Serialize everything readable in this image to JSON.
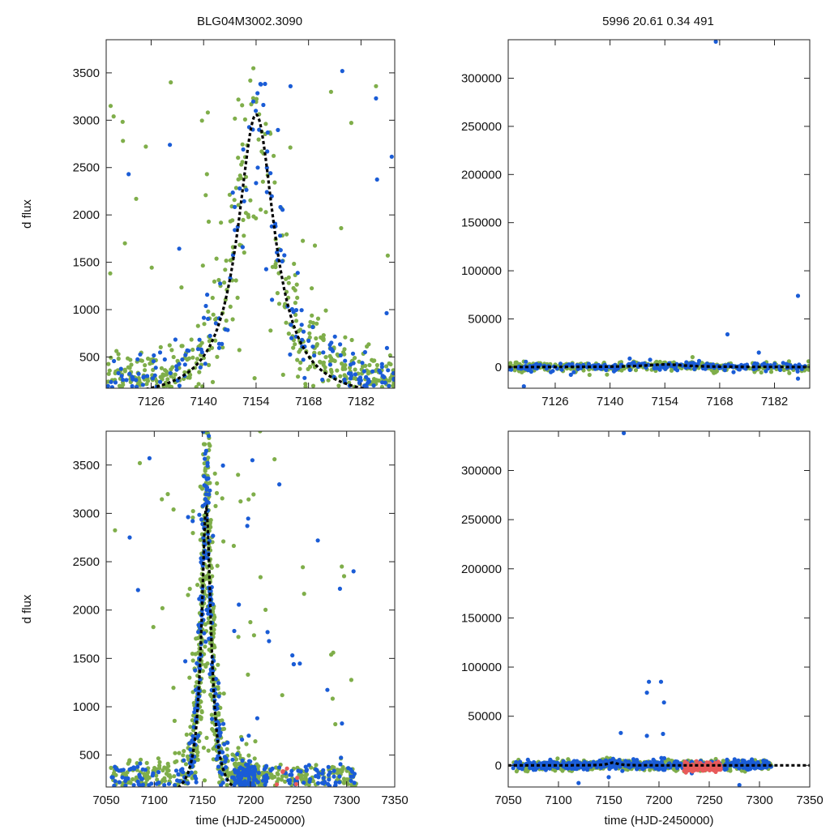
{
  "header": {
    "left_title": "BLG04M3002.3090",
    "right_title": "5996  20.61  0.34  491"
  },
  "colors": {
    "survey_green": "#7fae4a",
    "survey_blue": "#1a5cd6",
    "survey_red": "#e85a5a",
    "model_line": "#000000",
    "frame": "#222222"
  },
  "model": {
    "t0": 7154,
    "peak": 3020,
    "width": 6.0,
    "description_hidden": true
  },
  "chart_data": [
    {
      "id": "top-left",
      "type": "scatter",
      "title": "BLG04M3002.3090",
      "xlabel": "",
      "ylabel": "d flux",
      "xlim": [
        7114,
        7191
      ],
      "ylim": [
        170,
        3850
      ],
      "xticks": [
        7126,
        7140,
        7154,
        7168,
        7182
      ],
      "yticks": [
        500,
        1000,
        1500,
        2000,
        2500,
        3000,
        3500
      ],
      "show_model": true,
      "series": [
        {
          "name": "green",
          "color": "survey_green",
          "n": 460,
          "scatter": 0.22,
          "outlier_frac": 0.06,
          "baseline": 330
        },
        {
          "name": "blue",
          "color": "survey_blue",
          "n": 190,
          "scatter": 0.18,
          "outlier_frac": 0.04,
          "baseline": 280
        }
      ],
      "outliers": [
        [
          7116,
          3040
        ],
        [
          7120,
          2430
        ],
        [
          7122,
          2170
        ],
        [
          7131,
          2740
        ],
        [
          7119,
          1700
        ],
        [
          7177,
          3520
        ],
        [
          7186,
          3360
        ],
        [
          7186,
          3230
        ],
        [
          7174,
          3300
        ]
      ]
    },
    {
      "id": "top-right",
      "type": "scatter",
      "title": "5996  20.61  0.34  491",
      "xlabel": "",
      "ylabel": "",
      "xlim": [
        7114,
        7191
      ],
      "ylim": [
        -22000,
        340000
      ],
      "xticks": [
        7126,
        7140,
        7154,
        7168,
        7182
      ],
      "yticks": [
        0,
        50000,
        100000,
        150000,
        200000,
        250000,
        300000
      ],
      "show_model": true,
      "series": [
        {
          "name": "green",
          "color": "survey_green",
          "n": 360,
          "band": 2500
        },
        {
          "name": "blue",
          "color": "survey_blue",
          "n": 230,
          "band": 2200
        }
      ],
      "outliers": [
        [
          7167,
          338000
        ],
        [
          7188,
          74000
        ],
        [
          7170,
          34000
        ],
        [
          7188,
          -12000
        ],
        [
          7130,
          -8000
        ],
        [
          7118,
          -20000
        ],
        [
          7178,
          15000
        ]
      ]
    },
    {
      "id": "bottom-left",
      "type": "scatter",
      "title": "",
      "xlabel": "time (HJD-2450000)",
      "ylabel": "d flux",
      "xlim": [
        7050,
        7350
      ],
      "ylim": [
        170,
        3850
      ],
      "xticks": [
        7050,
        7100,
        7150,
        7200,
        7250,
        7300,
        7350
      ],
      "yticks": [
        500,
        1000,
        1500,
        2000,
        2500,
        3000,
        3500
      ],
      "show_model": true,
      "series": [
        {
          "name": "green",
          "color": "survey_green",
          "n": 900,
          "scatter": 0.22,
          "outlier_frac": 0.08,
          "baseline": 330
        },
        {
          "name": "blue",
          "color": "survey_blue",
          "n": 420,
          "scatter": 0.18,
          "outlier_frac": 0.06,
          "baseline": 280
        },
        {
          "name": "red",
          "color": "survey_red",
          "n": 6,
          "scatter": 0.1,
          "outlier_frac": 0.0,
          "baseline": 260
        }
      ],
      "outliers": [
        [
          7085,
          3520
        ],
        [
          7095,
          3570
        ],
        [
          7120,
          3040
        ],
        [
          7202,
          3550
        ],
        [
          7225,
          3560
        ],
        [
          7230,
          3300
        ],
        [
          7210,
          3850
        ],
        [
          7245,
          1440
        ],
        [
          7233,
          1120
        ],
        [
          7270,
          2720
        ],
        [
          7295,
          2450
        ],
        [
          7293,
          2220
        ],
        [
          7286,
          1560
        ],
        [
          7245,
          1440
        ]
      ]
    },
    {
      "id": "bottom-right",
      "type": "scatter",
      "title": "",
      "xlabel": "time (HJD-2450000)",
      "ylabel": "",
      "xlim": [
        7050,
        7350
      ],
      "ylim": [
        -22000,
        340000
      ],
      "xticks": [
        7050,
        7100,
        7150,
        7200,
        7250,
        7300,
        7350
      ],
      "yticks": [
        0,
        50000,
        100000,
        150000,
        200000,
        250000,
        300000
      ],
      "show_model": true,
      "series": [
        {
          "name": "green",
          "color": "survey_green",
          "n": 520,
          "band": 2600
        },
        {
          "name": "blue",
          "color": "survey_blue",
          "n": 520,
          "band": 2400
        },
        {
          "name": "red",
          "color": "survey_red",
          "n": 140,
          "band": 2200,
          "range": [
            7225,
            7262
          ]
        }
      ],
      "outliers": [
        [
          7165,
          338000
        ],
        [
          7190,
          85000
        ],
        [
          7202,
          85000
        ],
        [
          7188,
          74000
        ],
        [
          7205,
          64000
        ],
        [
          7204,
          32000
        ],
        [
          7162,
          33000
        ],
        [
          7188,
          30000
        ],
        [
          7280,
          -20000
        ],
        [
          7120,
          -18000
        ],
        [
          7150,
          -12000
        ]
      ]
    }
  ]
}
